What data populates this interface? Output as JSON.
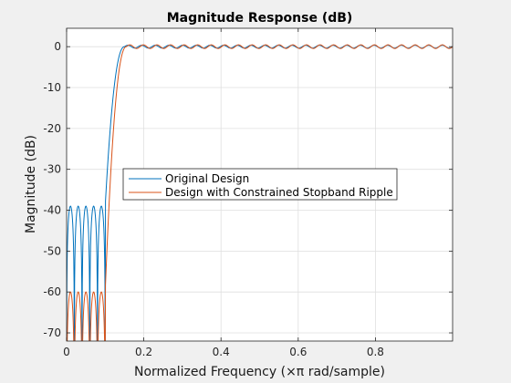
{
  "chart_data": {
    "type": "line",
    "title": "Magnitude Response (dB)",
    "xlabel": "Normalized Frequency (×π rad/sample)",
    "ylabel": "Magnitude (dB)",
    "xlim": [
      0,
      1
    ],
    "ylim": [
      -72,
      4.5
    ],
    "xticks": [
      0,
      0.2,
      0.4,
      0.6,
      0.8
    ],
    "xtick_labels": [
      "0",
      "0.2",
      "0.4",
      "0.6",
      "0.8"
    ],
    "yticks": [
      0,
      -10,
      -20,
      -30,
      -40,
      -50,
      -60,
      -70
    ],
    "ytick_labels": [
      "0",
      "-10",
      "-20",
      "-30",
      "-40",
      "-50",
      "-60",
      "-70"
    ],
    "grid": true,
    "legend_position": "center",
    "colors": {
      "original": "#0072BD",
      "constrained": "#D95319"
    },
    "series": [
      {
        "name": "Original Design",
        "color": "#0072BD",
        "stopband_edge": 0.1,
        "stopband_peak_db": -39,
        "stopband_lobes": 5,
        "passband_start": 0.15,
        "passband_ripple_db": 0.35,
        "passband_ripple_cycles": 24
      },
      {
        "name": "Design with Constrained Stopband Ripple",
        "color": "#D95319",
        "stopband_edge": 0.1,
        "stopband_peak_db": -60,
        "stopband_lobes": 5,
        "passband_start": 0.155,
        "passband_ripple_db": 0.45,
        "passband_ripple_cycles": 24
      }
    ]
  }
}
